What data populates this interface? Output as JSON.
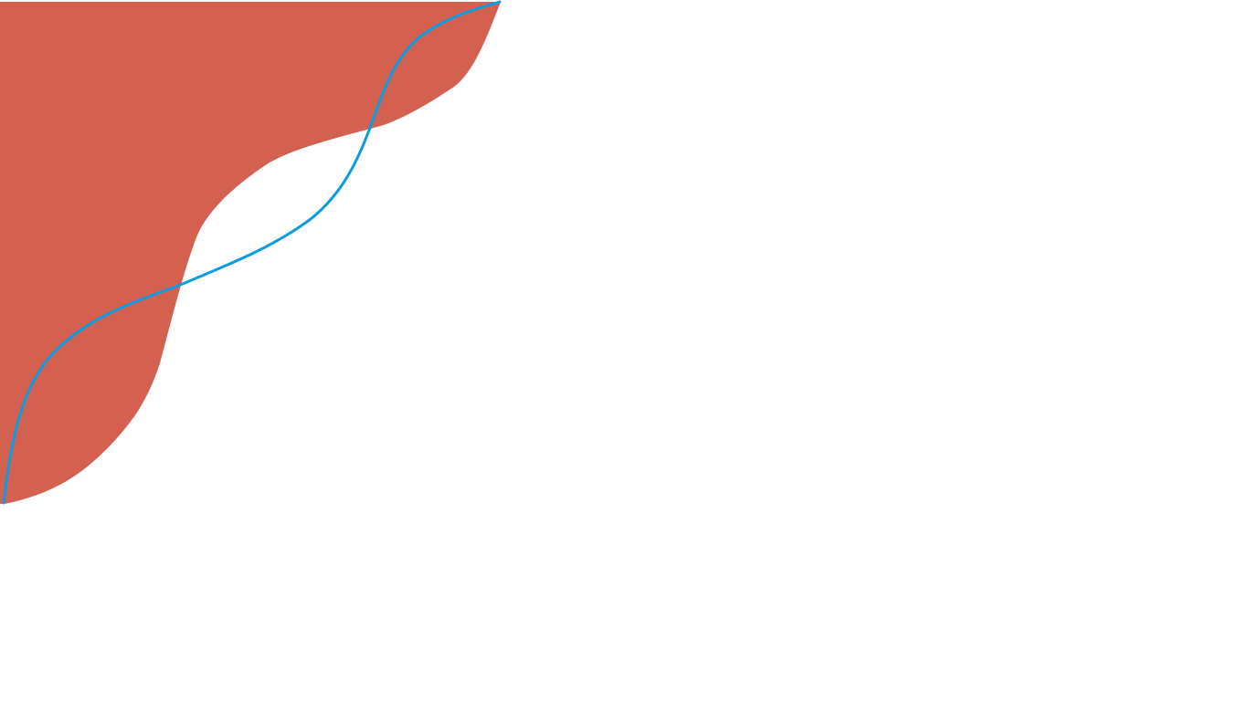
{
  "canvas": {
    "background_color": "#ffffff",
    "shapes": [
      {
        "kind": "filled-shape",
        "name": "red-wave-shape",
        "fill": "#D46150"
      },
      {
        "kind": "curve",
        "name": "blue-s-curve",
        "stroke": "#0A9BE0"
      }
    ]
  }
}
